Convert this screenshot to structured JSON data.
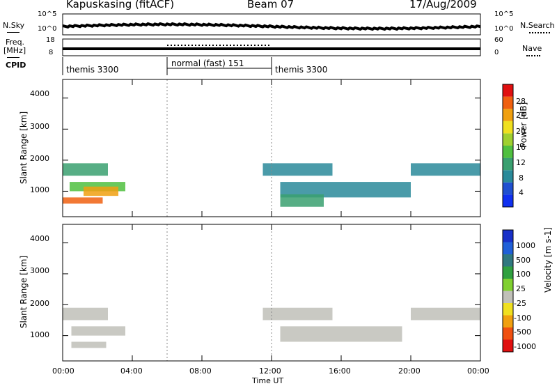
{
  "header": {
    "radar_title": "Kapuskasing (fitACF)",
    "beam": "Beam 07",
    "date": "17/Aug/2009"
  },
  "top_panels": {
    "nsky_label": "N.Sky",
    "nsearch_label": "N.Search",
    "noise_ticks": [
      "10^5",
      "10^0"
    ],
    "freq_label": "Freq.",
    "freq_unit": "[MHz]",
    "freq_ticks": [
      "18",
      "8"
    ],
    "nave_label": "Nave",
    "nave_ticks": [
      "60",
      "0"
    ],
    "cpid_label": "CPID"
  },
  "cpid_segments": [
    {
      "name": "themis 3300",
      "start_hour": 0,
      "end_hour": 6
    },
    {
      "name": "normal (fast) 151",
      "start_hour": 6,
      "end_hour": 12
    },
    {
      "name": "themis 3300",
      "start_hour": 12,
      "end_hour": 24
    }
  ],
  "chart_data": [
    {
      "type": "heatmap",
      "title": "",
      "xlabel": "Time UT",
      "ylabel": "Slant Range [km]",
      "xlim": [
        0,
        24
      ],
      "ylim": [
        180,
        4600
      ],
      "x_ticks": [
        "00:00",
        "04:00",
        "08:00",
        "12:00",
        "16:00",
        "20:00",
        "00:00"
      ],
      "y_ticks": [
        "1000",
        "2000",
        "3000",
        "4000"
      ],
      "colorbar": {
        "label": "Power [dB]",
        "ticks": [
          "28",
          "24",
          "20",
          "16",
          "12",
          "8",
          "4"
        ],
        "range": [
          0,
          30
        ],
        "colors": [
          "#1030f0",
          "#2050d0",
          "#2a8a9a",
          "#3aa070",
          "#50c040",
          "#a0d030",
          "#f0e020",
          "#f0a010",
          "#f06010",
          "#e01010"
        ]
      },
      "regions": [
        {
          "t0": 0.0,
          "t1": 2.6,
          "r0": 1500,
          "r1": 1900,
          "value": 9
        },
        {
          "t0": 0.4,
          "t1": 3.6,
          "r0": 1000,
          "r1": 1300,
          "value": 14
        },
        {
          "t0": 0.0,
          "t1": 2.3,
          "r0": 600,
          "r1": 800,
          "value": 26
        },
        {
          "t0": 1.2,
          "t1": 3.2,
          "r0": 850,
          "r1": 1150,
          "value": 22
        },
        {
          "t0": 11.5,
          "t1": 15.5,
          "r0": 1500,
          "r1": 1900,
          "value": 7
        },
        {
          "t0": 12.5,
          "t1": 20.0,
          "r0": 800,
          "r1": 1300,
          "value": 6
        },
        {
          "t0": 20.0,
          "t1": 24.0,
          "r0": 1500,
          "r1": 1900,
          "value": 8
        },
        {
          "t0": 12.5,
          "t1": 15.0,
          "r0": 500,
          "r1": 900,
          "value": 11
        }
      ]
    },
    {
      "type": "heatmap",
      "title": "",
      "xlabel": "Time UT",
      "ylabel": "Slant Range [km]",
      "xlim": [
        0,
        24
      ],
      "ylim": [
        180,
        4600
      ],
      "x_ticks": [
        "00:00",
        "04:00",
        "08:00",
        "12:00",
        "16:00",
        "20:00",
        "00:00"
      ],
      "y_ticks": [
        "1000",
        "2000",
        "3000",
        "4000"
      ],
      "colorbar": {
        "label": "Velocity [m s-1]",
        "ticks": [
          "1000",
          "500",
          "100",
          "25",
          "-25",
          "-100",
          "-500",
          "-1000"
        ],
        "colors": [
          "#1830c8",
          "#2060d8",
          "#307880",
          "#30a040",
          "#80d030",
          "#c0c0b8",
          "#f0e020",
          "#f0a010",
          "#f05010",
          "#e01010"
        ]
      },
      "regions": [
        {
          "t0": 0.0,
          "t1": 2.6,
          "r0": 1500,
          "r1": 1900,
          "value": 0
        },
        {
          "t0": 0.5,
          "t1": 3.6,
          "r0": 1000,
          "r1": 1300,
          "value": 0
        },
        {
          "t0": 0.5,
          "t1": 2.5,
          "r0": 600,
          "r1": 800,
          "value": 0
        },
        {
          "t0": 11.5,
          "t1": 15.5,
          "r0": 1500,
          "r1": 1900,
          "value": 0
        },
        {
          "t0": 12.5,
          "t1": 19.5,
          "r0": 800,
          "r1": 1300,
          "value": 0
        },
        {
          "t0": 20.0,
          "t1": 24.0,
          "r0": 1500,
          "r1": 1900,
          "value": 0
        }
      ]
    }
  ],
  "colors": {
    "background": "#ffffff",
    "axes": "#000000"
  }
}
